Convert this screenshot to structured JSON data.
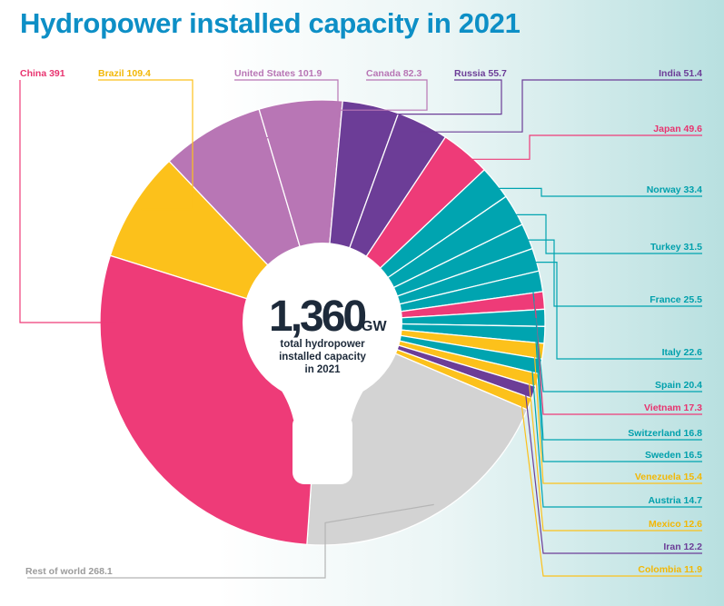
{
  "title": "Hydropower installed capacity in 2021",
  "center": {
    "value": "1,360",
    "unit": "GW",
    "line1": "total hydropower",
    "line2": "installed capacity",
    "line3": "in 2021"
  },
  "colors": {
    "title": "#0d8fc6",
    "pink": "#ee3b78",
    "yellow": "#fcc11b",
    "mauve": "#b876b5",
    "purple": "#6c3d97",
    "teal": "#00a4b0",
    "grey": "#d3d3d3",
    "text_dark": "#1d2a3a"
  },
  "chart_data": {
    "type": "pie",
    "unit": "GW",
    "total": 1360,
    "slices": [
      {
        "label": "Brazil",
        "display": "Brazil 109.4",
        "value": 109.4,
        "color": "#fcc11b"
      },
      {
        "label": "United States",
        "display": "United States 101.9",
        "value": 101.9,
        "color": "#b876b5"
      },
      {
        "label": "Canada",
        "display": "Canada 82.3",
        "value": 82.3,
        "color": "#b876b5"
      },
      {
        "label": "Russia",
        "display": "Russia 55.7",
        "value": 55.7,
        "color": "#6c3d97"
      },
      {
        "label": "India",
        "display": "India 51.4",
        "value": 51.4,
        "color": "#6c3d97"
      },
      {
        "label": "Japan",
        "display": "Japan 49.6",
        "value": 49.6,
        "color": "#ee3b78"
      },
      {
        "label": "Norway",
        "display": "Norway 33.4",
        "value": 33.4,
        "color": "#00a4b0"
      },
      {
        "label": "Turkey",
        "display": "Turkey 31.5",
        "value": 31.5,
        "color": "#00a4b0"
      },
      {
        "label": "France",
        "display": "France 25.5",
        "value": 25.5,
        "color": "#00a4b0"
      },
      {
        "label": "Italy",
        "display": "Italy 22.6",
        "value": 22.6,
        "color": "#00a4b0"
      },
      {
        "label": "Spain",
        "display": "Spain 20.4",
        "value": 20.4,
        "color": "#00a4b0"
      },
      {
        "label": "Vietnam",
        "display": "Vietnam 17.3",
        "value": 17.3,
        "color": "#ee3b78"
      },
      {
        "label": "Switzerland",
        "display": "Switzerland 16.8",
        "value": 16.8,
        "color": "#00a4b0"
      },
      {
        "label": "Sweden",
        "display": "Sweden 16.5",
        "value": 16.5,
        "color": "#00a4b0"
      },
      {
        "label": "Venezuela",
        "display": "Venezuela 15.4",
        "value": 15.4,
        "color": "#fcc11b"
      },
      {
        "label": "Austria",
        "display": "Austria 14.7",
        "value": 14.7,
        "color": "#00a4b0"
      },
      {
        "label": "Mexico",
        "display": "Mexico 12.6",
        "value": 12.6,
        "color": "#fcc11b"
      },
      {
        "label": "Iran",
        "display": "Iran 12.2",
        "value": 12.2,
        "color": "#6c3d97"
      },
      {
        "label": "Colombia",
        "display": "Colombia 11.9",
        "value": 11.9,
        "color": "#fcc11b"
      },
      {
        "label": "Rest of world",
        "display": "Rest of world 268.1",
        "value": 268.1,
        "color": "#d3d3d3"
      },
      {
        "label": "China",
        "display": "China 391",
        "value": 391,
        "color": "#ee3b78"
      }
    ]
  }
}
